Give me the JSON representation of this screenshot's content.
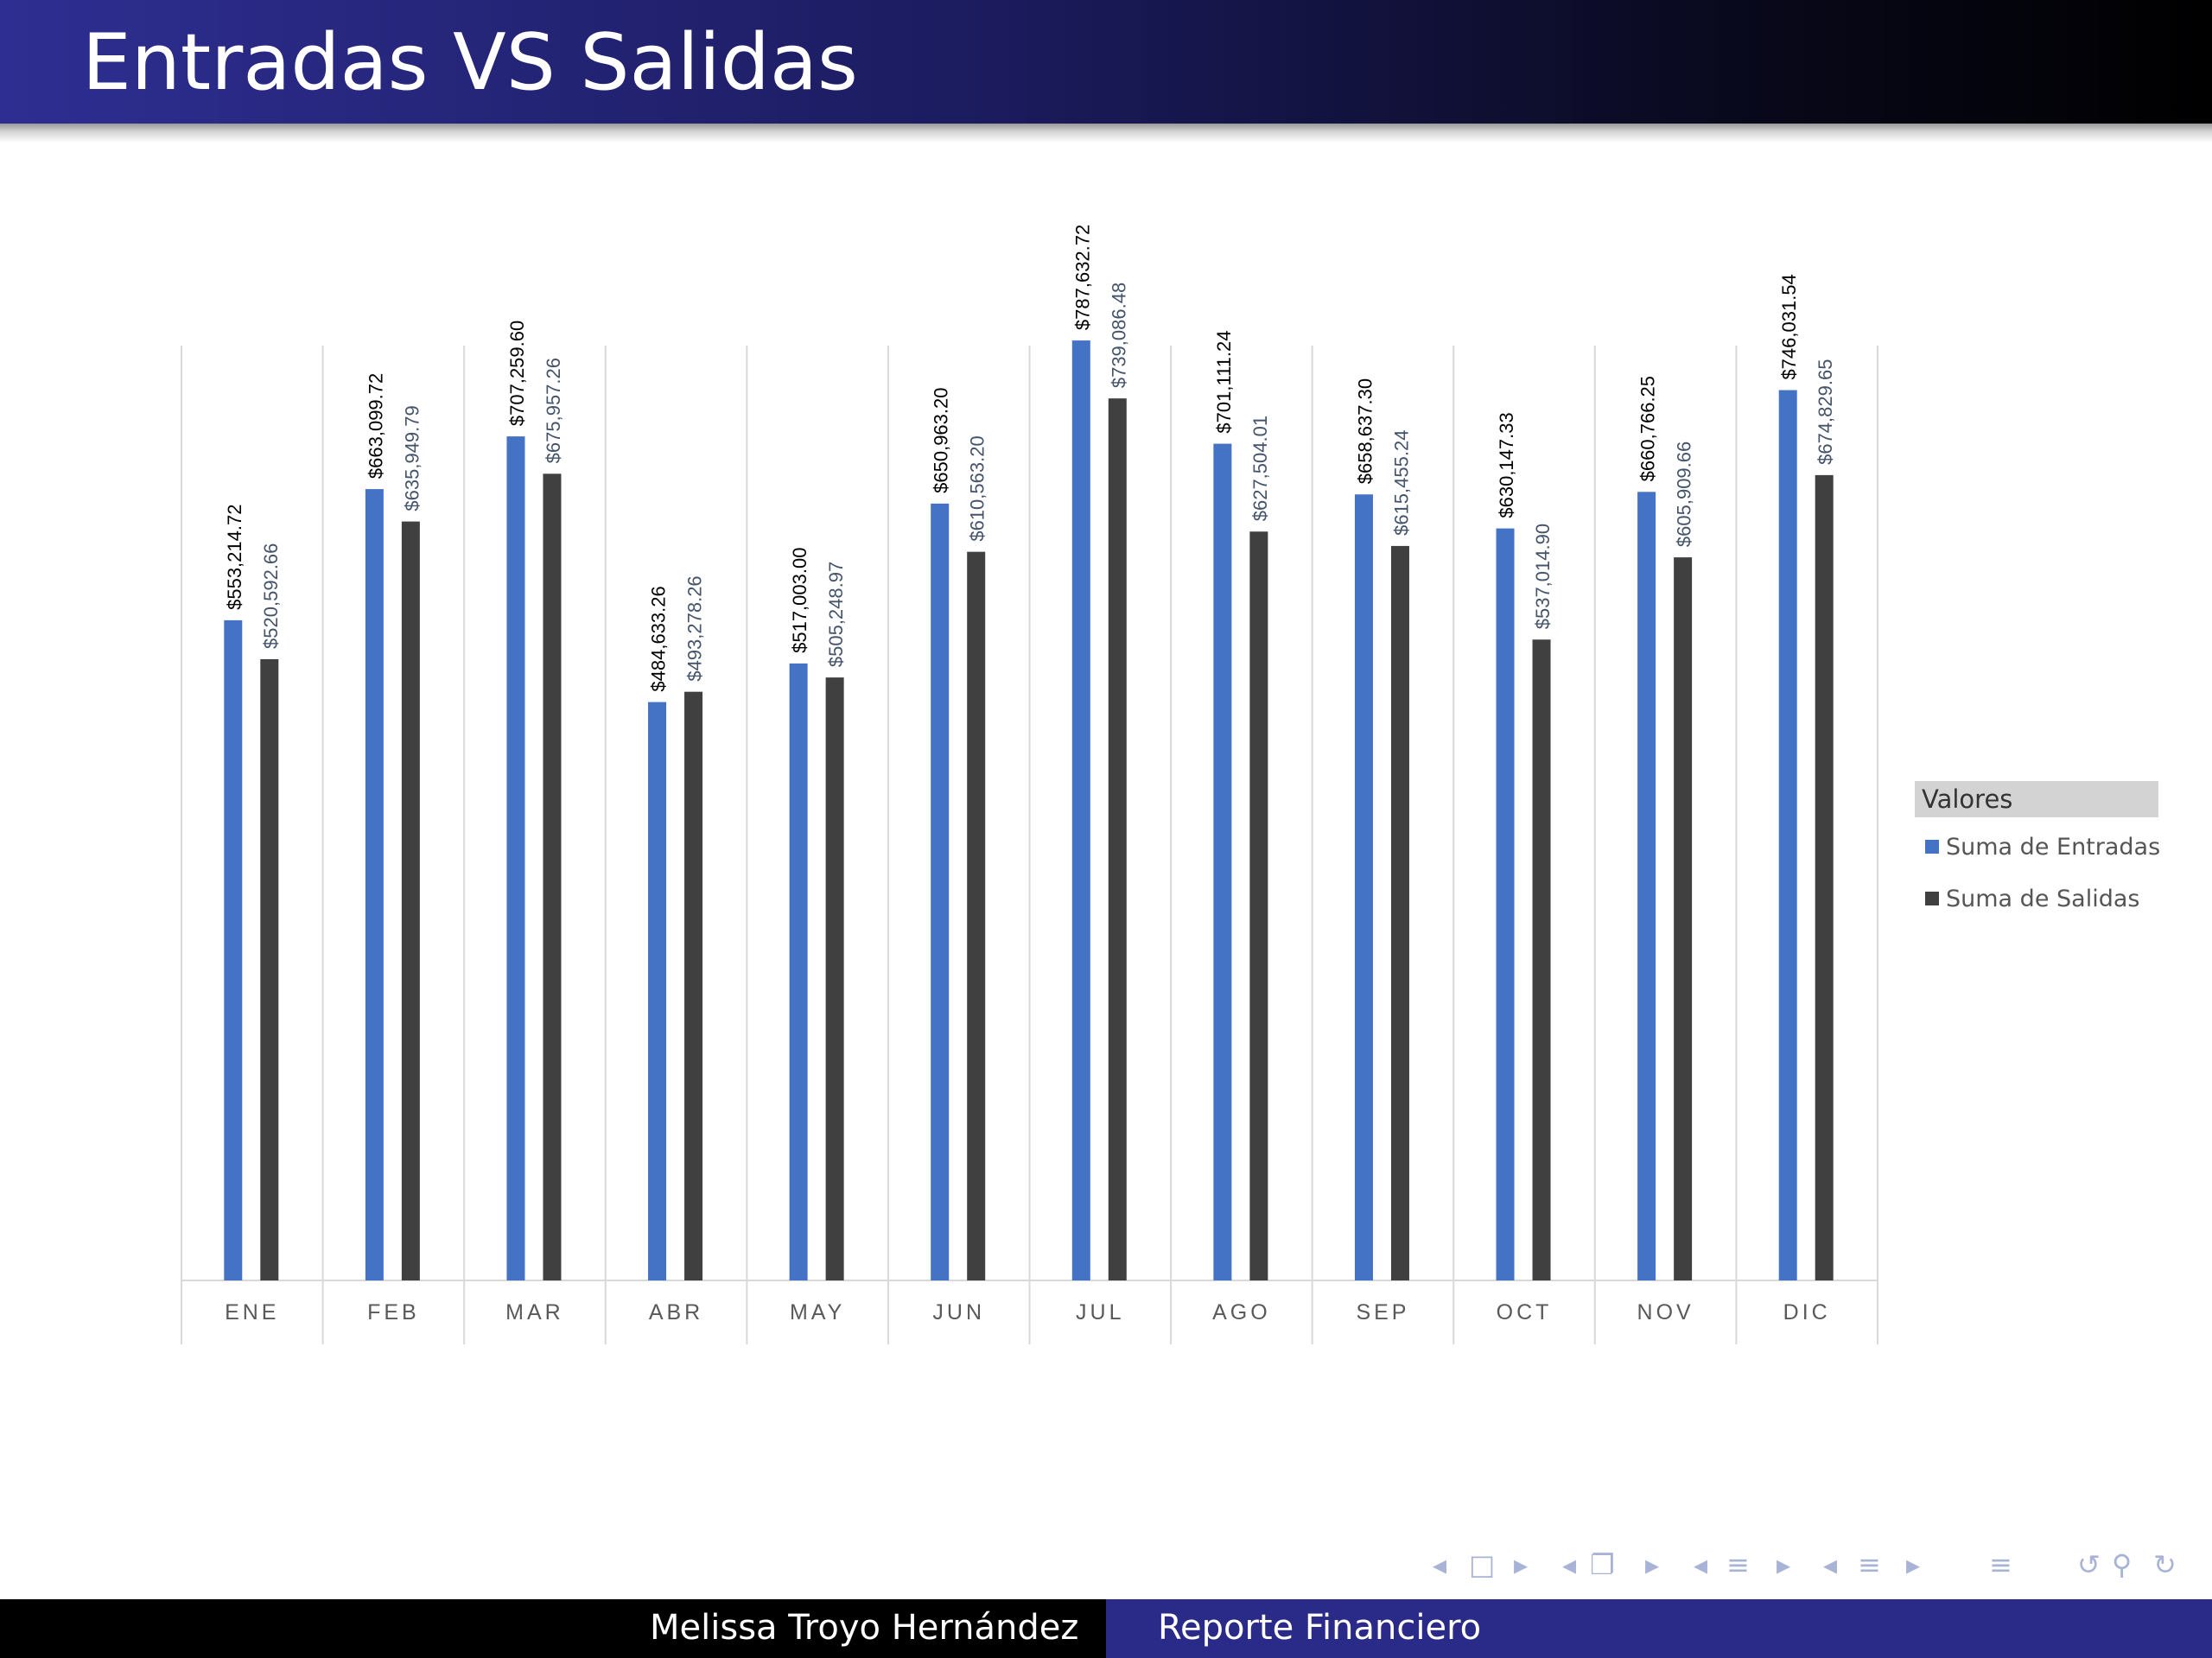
{
  "slide": {
    "title": "Entradas VS Salidas",
    "footer_author": "Melissa Troyo Hernández",
    "footer_report": "Reporte Financiero"
  },
  "legend": {
    "title": "Valores",
    "items": [
      {
        "label": "Suma de Entradas",
        "color": "#4472c4"
      },
      {
        "label": "Suma de Salidas",
        "color": "#404040"
      }
    ]
  },
  "colors": {
    "entradas": "#4472c4",
    "salidas": "#404040",
    "entradas_label": "#000000",
    "salidas_label": "#44546a",
    "title_bar_start": "#2e2e92",
    "title_bar_end": "#000000",
    "footer_right": "#2a2a88"
  },
  "navigation_icons": [
    "arrow-left-icon",
    "frame-icon",
    "arrow-right-icon",
    "arrow-left-icon",
    "subsection-icon",
    "arrow-right-icon",
    "arrow-left-icon",
    "section-icon",
    "arrow-right-icon",
    "arrow-left-icon",
    "section-icon",
    "arrow-right-icon",
    "align-icon",
    "undo-icon",
    "search-icon",
    "redo-icon"
  ],
  "chart_data": {
    "type": "bar",
    "categories": [
      "ENE",
      "FEB",
      "MAR",
      "ABR",
      "MAY",
      "JUN",
      "JUL",
      "AGO",
      "SEP",
      "OCT",
      "NOV",
      "DIC"
    ],
    "series": [
      {
        "name": "Suma de Entradas",
        "values": [
          553214.72,
          663099.72,
          707259.6,
          484633.26,
          517003.0,
          650963.2,
          787632.72,
          701111.24,
          658637.3,
          630147.33,
          660766.25,
          746031.54
        ],
        "labels": [
          "$553,214.72",
          "$663,099.72",
          "$707,259.60",
          "$484,633.26",
          "$517,003.00",
          "$650,963.20",
          "$787,632.72",
          "$701,111.24",
          "$658,637.30",
          "$630,147.33",
          "$660,766.25",
          "$746,031.54"
        ]
      },
      {
        "name": "Suma de Salidas",
        "values": [
          520592.66,
          635949.79,
          675957.26,
          493278.26,
          505248.97,
          610563.2,
          739086.48,
          627504.01,
          615455.24,
          537014.9,
          605909.66,
          674829.65
        ],
        "labels": [
          "$520,592.66",
          "$635,949.79",
          "$675,957.26",
          "$493,278.26",
          "$505,248.97",
          "$610,563.20",
          "$739,086.48",
          "$627,504.01",
          "$615,455.24",
          "$537,014.90",
          "$605,909.66",
          "$674,829.65"
        ]
      }
    ],
    "ylim": [
      0,
      800000
    ],
    "grid": "vertical category separators",
    "legend_position": "right"
  }
}
